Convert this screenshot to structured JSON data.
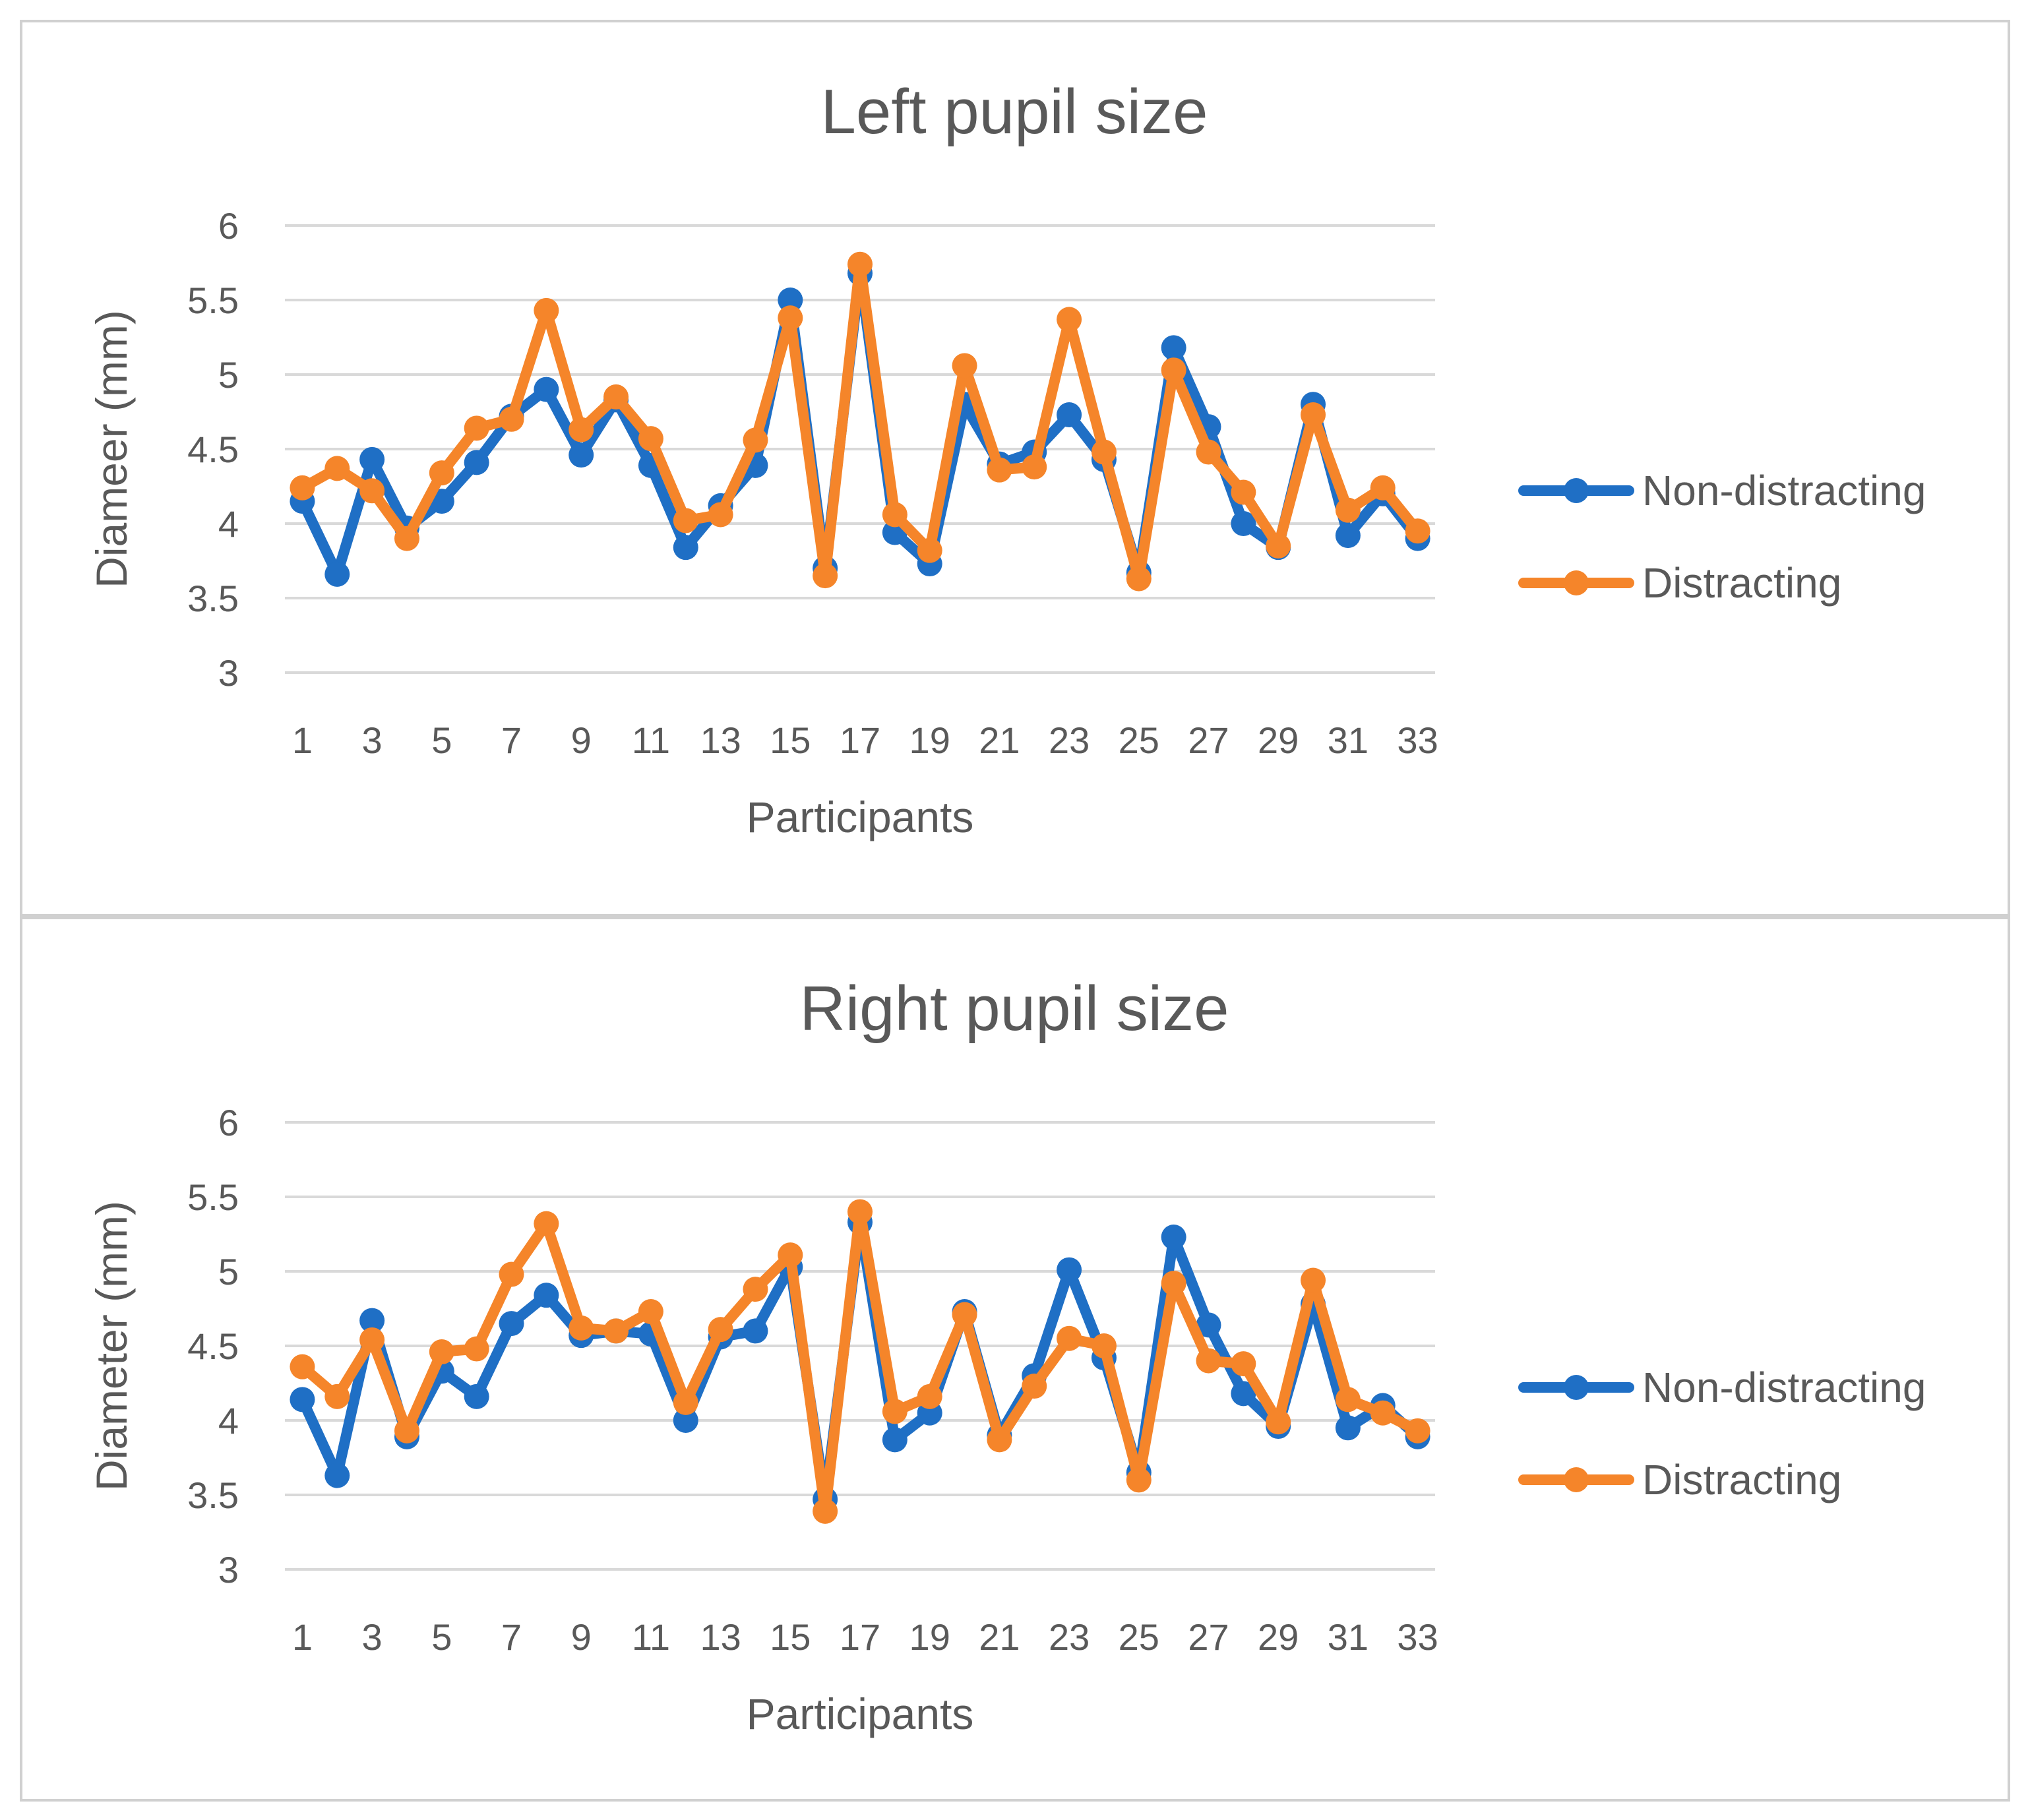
{
  "colors": {
    "series1": "#1f6fc5",
    "series2": "#f5852a",
    "grid": "#d9d9d9",
    "text": "#595959",
    "border": "#d0d0d0",
    "background": "#ffffff"
  },
  "chart_data": [
    {
      "type": "line",
      "title": "Left pupil size",
      "xlabel": "Participants",
      "ylabel": "Diameer (mm)",
      "ylim": [
        3,
        6
      ],
      "yticks": [
        "3",
        "3.5",
        "4",
        "4.5",
        "5",
        "5.5",
        "6"
      ],
      "xtick_labels": [
        "1",
        "3",
        "5",
        "7",
        "9",
        "11",
        "13",
        "15",
        "17",
        "19",
        "21",
        "23",
        "25",
        "27",
        "29",
        "31",
        "33"
      ],
      "grid": true,
      "legend_position": "right",
      "x": [
        1,
        2,
        3,
        4,
        5,
        6,
        7,
        8,
        9,
        10,
        11,
        12,
        13,
        14,
        15,
        16,
        17,
        18,
        19,
        20,
        21,
        22,
        23,
        24,
        25,
        26,
        27,
        28,
        29,
        30,
        31,
        32,
        33
      ],
      "series": [
        {
          "name": "Non-distracting",
          "values": [
            4.15,
            3.66,
            4.43,
            3.97,
            4.15,
            4.41,
            4.72,
            4.9,
            4.46,
            4.83,
            4.39,
            3.84,
            4.12,
            4.39,
            5.5,
            3.7,
            5.68,
            3.94,
            3.73,
            4.8,
            4.4,
            4.48,
            4.73,
            4.43,
            3.67,
            5.18,
            4.65,
            4.0,
            3.84,
            4.8,
            3.92,
            4.2,
            3.9
          ]
        },
        {
          "name": "Distracting",
          "values": [
            4.24,
            4.37,
            4.22,
            3.9,
            4.34,
            4.64,
            4.7,
            5.43,
            4.63,
            4.85,
            4.57,
            4.02,
            4.06,
            4.56,
            5.38,
            3.65,
            5.74,
            4.06,
            3.82,
            5.06,
            4.36,
            4.38,
            5.37,
            4.48,
            3.63,
            5.03,
            4.48,
            4.21,
            3.85,
            4.73,
            4.09,
            4.24,
            3.95
          ]
        }
      ]
    },
    {
      "type": "line",
      "title": "Right pupil size",
      "xlabel": "Participants",
      "ylabel": "Diameter (mm)",
      "ylim": [
        3,
        6
      ],
      "yticks": [
        "3",
        "3.5",
        "4",
        "4.5",
        "5",
        "5.5",
        "6"
      ],
      "xtick_labels": [
        "1",
        "3",
        "5",
        "7",
        "9",
        "11",
        "13",
        "15",
        "17",
        "19",
        "21",
        "23",
        "25",
        "27",
        "29",
        "31",
        "33"
      ],
      "grid": true,
      "legend_position": "right",
      "x": [
        1,
        2,
        3,
        4,
        5,
        6,
        7,
        8,
        9,
        10,
        11,
        12,
        13,
        14,
        15,
        16,
        17,
        18,
        19,
        20,
        21,
        22,
        23,
        24,
        25,
        26,
        27,
        28,
        29,
        30,
        31,
        32,
        33
      ],
      "series": [
        {
          "name": "Non-distracting",
          "values": [
            4.14,
            3.63,
            4.67,
            3.89,
            4.33,
            4.16,
            4.65,
            4.84,
            4.57,
            4.6,
            4.58,
            4.0,
            4.56,
            4.6,
            5.03,
            3.47,
            5.33,
            3.87,
            4.05,
            4.73,
            3.9,
            4.3,
            5.01,
            4.42,
            3.65,
            5.23,
            4.64,
            4.18,
            3.96,
            4.78,
            3.95,
            4.1,
            3.89
          ]
        },
        {
          "name": "Distracting",
          "values": [
            4.36,
            4.16,
            4.54,
            3.93,
            4.46,
            4.48,
            4.98,
            5.32,
            4.62,
            4.6,
            4.73,
            4.12,
            4.61,
            4.88,
            5.11,
            3.39,
            5.4,
            4.06,
            4.16,
            4.71,
            3.87,
            4.23,
            4.55,
            4.5,
            3.6,
            4.92,
            4.4,
            4.38,
            3.99,
            4.94,
            4.14,
            4.05,
            3.93
          ]
        }
      ]
    }
  ]
}
